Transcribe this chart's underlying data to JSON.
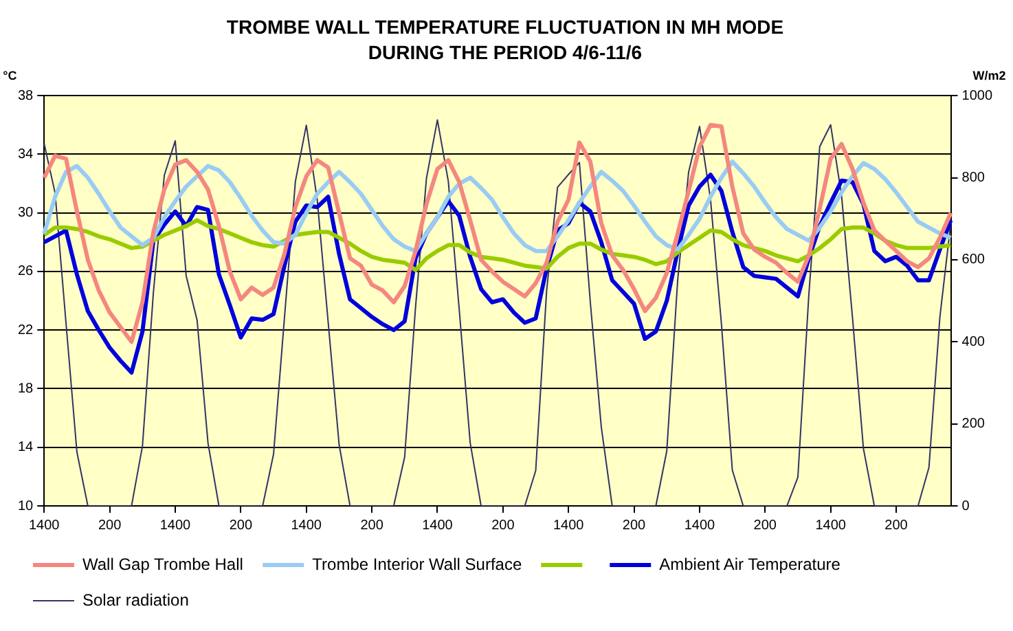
{
  "chart_data": {
    "type": "line",
    "title": "TROMBE WALL TEMPERATURE FLUCTUATION IN MH MODE",
    "subtitle": "DURING THE PERIOD 4/6-11/6",
    "ylabel": "°C",
    "y2label": "W/m2",
    "categories": [
      "1400",
      null,
      null,
      null,
      null,
      null,
      "200",
      null,
      null,
      null,
      null,
      null,
      "1400",
      null,
      null,
      null,
      null,
      null,
      "200",
      null,
      null,
      null,
      null,
      null,
      "1400",
      null,
      null,
      null,
      null,
      null,
      "200",
      null,
      null,
      null,
      null,
      null,
      "1400",
      null,
      null,
      null,
      null,
      null,
      "200",
      null,
      null,
      null,
      null,
      null,
      "1400",
      null,
      null,
      null,
      null,
      null,
      "200",
      null,
      null,
      null,
      null,
      null,
      "1400",
      null,
      null,
      null,
      null,
      null,
      "200",
      null,
      null,
      null,
      null,
      null,
      "1400",
      null,
      null,
      null,
      null,
      null,
      "200",
      null,
      null,
      null,
      null,
      null
    ],
    "ylim": [
      10,
      38
    ],
    "yticks": [
      10,
      14,
      18,
      22,
      26,
      30,
      34,
      38
    ],
    "y2lim": [
      0,
      1000
    ],
    "y2ticks": [
      0,
      200,
      400,
      600,
      800,
      1000
    ],
    "grid": "y",
    "legend": "bottom",
    "marker": "none",
    "line_style": "solid",
    "series": [
      {
        "name": "Wall Gap Trombe Hall",
        "color": "#f4877f",
        "values": [
          32.4,
          33.9,
          33.7,
          30.1,
          26.8,
          24.7,
          23.2,
          22.2,
          21.2,
          23.9,
          28.7,
          31.6,
          33.3,
          33.6,
          32.8,
          31.6,
          29.1,
          26.0,
          24.1,
          24.9,
          24.4,
          24.9,
          27.2,
          30.4,
          32.5,
          33.6,
          33.1,
          30.0,
          26.9,
          26.4,
          25.1,
          24.7,
          23.9,
          25.0,
          27.4,
          30.6,
          33.0,
          33.6,
          32.1,
          29.5,
          26.8,
          26.0,
          25.3,
          24.8,
          24.3,
          25.2,
          26.6,
          29.4,
          30.9,
          34.8,
          33.5,
          29.3,
          27.1,
          26.1,
          24.8,
          23.3,
          24.2,
          25.9,
          28.6,
          31.5,
          34.5,
          36.0,
          35.9,
          31.8,
          28.6,
          27.5,
          27.0,
          26.6,
          25.9,
          25.3,
          27.1,
          30.3,
          33.7,
          34.7,
          33.0,
          30.7,
          28.8,
          28.1,
          27.4,
          26.7,
          26.3,
          26.9,
          28.3,
          30.0
        ]
      },
      {
        "name": "Trombe Interior Wall Surface",
        "color": "#99ccf4",
        "values": [
          28.6,
          31.1,
          32.8,
          33.2,
          32.4,
          31.3,
          30.1,
          29.0,
          28.4,
          27.8,
          28.3,
          29.7,
          30.8,
          31.8,
          32.5,
          33.2,
          32.9,
          32.1,
          31.0,
          29.8,
          28.8,
          28.0,
          27.9,
          28.5,
          30.0,
          31.3,
          32.1,
          32.8,
          32.1,
          31.3,
          30.2,
          29.1,
          28.2,
          27.7,
          27.4,
          28.6,
          29.7,
          31.1,
          32.0,
          32.4,
          31.7,
          30.9,
          29.7,
          28.6,
          27.8,
          27.4,
          27.4,
          28.4,
          29.5,
          30.7,
          31.8,
          32.8,
          32.2,
          31.5,
          30.5,
          29.4,
          28.4,
          27.8,
          27.5,
          28.5,
          29.6,
          31.1,
          32.4,
          33.5,
          32.7,
          31.8,
          30.7,
          29.7,
          28.9,
          28.5,
          28.1,
          29.0,
          30.1,
          31.4,
          32.5,
          33.4,
          33.0,
          32.3,
          31.4,
          30.4,
          29.4,
          29.0,
          28.6,
          28.3
        ]
      },
      {
        "color": "#99cc00",
        "values": [
          28.5,
          29.0,
          29.0,
          28.9,
          28.7,
          28.4,
          28.2,
          27.9,
          27.6,
          27.7,
          28.1,
          28.5,
          28.8,
          29.1,
          29.5,
          29.1,
          28.9,
          28.6,
          28.3,
          28.0,
          27.8,
          27.7,
          28.1,
          28.5,
          28.6,
          28.7,
          28.7,
          28.3,
          27.9,
          27.4,
          27.0,
          26.8,
          26.7,
          26.6,
          26.1,
          26.9,
          27.4,
          27.8,
          27.8,
          27.3,
          27.0,
          26.9,
          26.8,
          26.6,
          26.4,
          26.3,
          26.2,
          27.0,
          27.6,
          27.9,
          27.9,
          27.5,
          27.2,
          27.1,
          27.0,
          26.8,
          26.5,
          26.7,
          27.3,
          27.8,
          28.3,
          28.8,
          28.7,
          28.2,
          27.8,
          27.6,
          27.4,
          27.1,
          26.9,
          26.7,
          27.1,
          27.6,
          28.2,
          28.9,
          29.0,
          29.0,
          28.6,
          28.1,
          27.8,
          27.6,
          27.6,
          27.6,
          27.7,
          27.8
        ]
      },
      {
        "name": "Ambient Air Temperature",
        "color": "#0000dd",
        "values": [
          28.0,
          28.4,
          28.8,
          25.8,
          23.3,
          22.0,
          20.8,
          19.9,
          19.1,
          21.9,
          28.1,
          29.2,
          30.1,
          29.1,
          30.4,
          30.2,
          25.8,
          23.7,
          21.5,
          22.8,
          22.7,
          23.1,
          26.4,
          29.4,
          30.5,
          30.4,
          31.1,
          27.2,
          24.1,
          23.5,
          22.9,
          22.4,
          22.0,
          22.6,
          26.9,
          28.6,
          29.7,
          30.8,
          29.8,
          27.0,
          24.8,
          23.9,
          24.1,
          23.2,
          22.5,
          22.8,
          26.2,
          28.8,
          29.3,
          30.7,
          30.1,
          28.0,
          25.4,
          24.6,
          23.8,
          21.4,
          21.9,
          24.0,
          27.4,
          30.5,
          31.8,
          32.6,
          31.5,
          28.7,
          26.3,
          25.7,
          25.6,
          25.5,
          24.9,
          24.3,
          26.9,
          29.1,
          30.7,
          32.2,
          32.1,
          30.6,
          27.4,
          26.7,
          27.0,
          26.4,
          25.4,
          25.4,
          27.5,
          29.5
        ]
      },
      {
        "name": "Solar radiation",
        "color": "#333366",
        "axis": "y2",
        "values": [
          883,
          763,
          446,
          131,
          0,
          0,
          0,
          0,
          0,
          146,
          520,
          806,
          890,
          561,
          453,
          153,
          0,
          0,
          0,
          0,
          0,
          126,
          459,
          791,
          928,
          746,
          448,
          150,
          0,
          0,
          0,
          0,
          0,
          119,
          485,
          799,
          941,
          791,
          478,
          154,
          0,
          0,
          0,
          0,
          0,
          86,
          525,
          777,
          808,
          837,
          496,
          193,
          0,
          0,
          0,
          0,
          0,
          134,
          552,
          814,
          925,
          748,
          444,
          87,
          0,
          0,
          0,
          0,
          0,
          70,
          513,
          876,
          929,
          756,
          459,
          140,
          0,
          0,
          0,
          0,
          0,
          94,
          460,
          690
        ]
      }
    ]
  }
}
